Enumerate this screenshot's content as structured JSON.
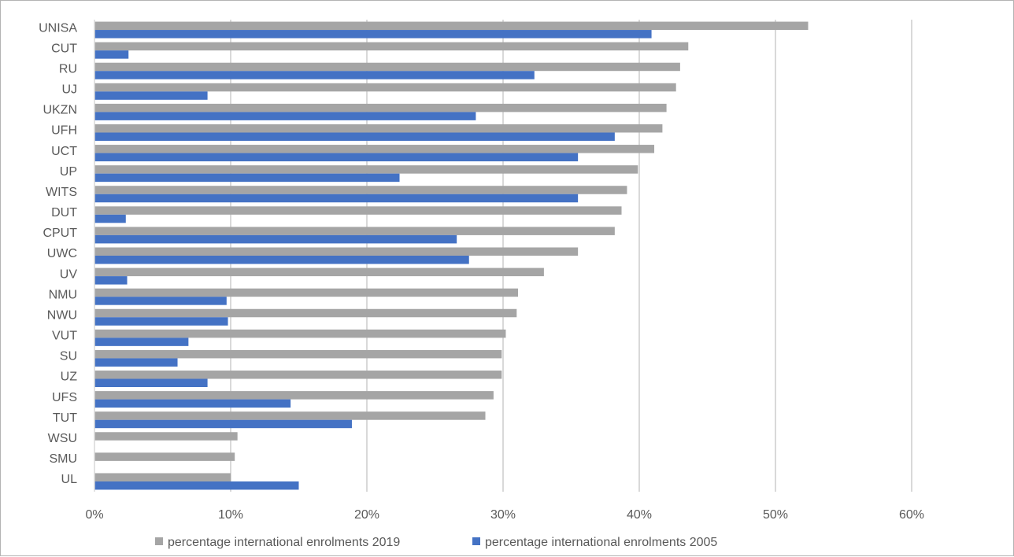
{
  "chart_data": {
    "type": "bar",
    "orientation": "horizontal",
    "title": "",
    "xlabel": "",
    "ylabel": "",
    "xlim": [
      0,
      0.6
    ],
    "x_tick_values": [
      0,
      0.1,
      0.2,
      0.3,
      0.4,
      0.5,
      0.6
    ],
    "x_tick_labels": [
      "0%",
      "10%",
      "20%",
      "30%",
      "40%",
      "50%",
      "60%"
    ],
    "grid": true,
    "legend_position": "bottom",
    "categories": [
      "UNISA",
      "CUT",
      "RU",
      "UJ",
      "UKZN",
      "UFH",
      "UCT",
      "UP",
      "WITS",
      "DUT",
      "CPUT",
      "UWC",
      "UV",
      "NMU",
      "NWU",
      "VUT",
      "SU",
      "UZ",
      "UFS",
      "TUT",
      "WSU",
      "SMU",
      "UL"
    ],
    "series": [
      {
        "name": "percentage international enrolments 2019",
        "color": "#a5a5a5",
        "values": [
          0.524,
          0.436,
          0.43,
          0.427,
          0.42,
          0.417,
          0.411,
          0.399,
          0.391,
          0.387,
          0.382,
          0.355,
          0.33,
          0.311,
          0.31,
          0.302,
          0.299,
          0.299,
          0.293,
          0.287,
          0.105,
          0.103,
          0.1
        ]
      },
      {
        "name": "percentage international enrolments 2005",
        "color": "#4472c4",
        "values": [
          0.409,
          0.025,
          0.323,
          0.083,
          0.28,
          0.382,
          0.355,
          0.224,
          0.355,
          0.023,
          0.266,
          0.275,
          0.024,
          0.097,
          0.098,
          0.069,
          0.061,
          0.083,
          0.144,
          0.189,
          null,
          null,
          0.15
        ]
      }
    ]
  }
}
